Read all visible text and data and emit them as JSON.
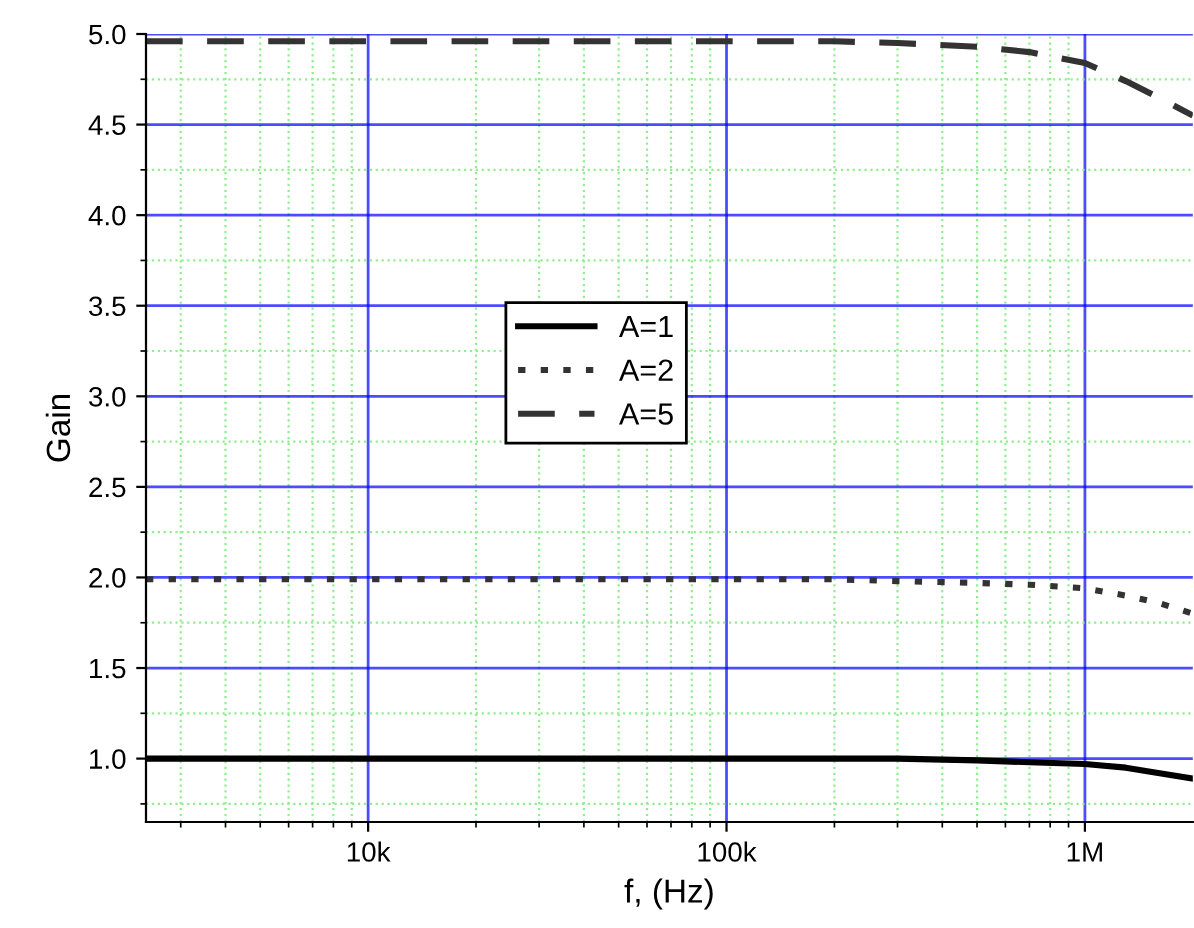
{
  "chart_data": {
    "type": "line",
    "xlabel": "f, (Hz)",
    "ylabel": "Gain",
    "log": "x",
    "xlim": [
      2400,
      2000000
    ],
    "ylim": [
      0.65,
      5.0
    ],
    "xticks": [
      {
        "value": 3000,
        "label": null
      },
      {
        "value": 4000,
        "label": null
      },
      {
        "value": 5000,
        "label": null
      },
      {
        "value": 6000,
        "label": null
      },
      {
        "value": 7000,
        "label": null
      },
      {
        "value": 8000,
        "label": null
      },
      {
        "value": 9000,
        "label": null
      },
      {
        "value": 10000,
        "label": "10k"
      },
      {
        "value": 20000,
        "label": null
      },
      {
        "value": 30000,
        "label": null
      },
      {
        "value": 40000,
        "label": null
      },
      {
        "value": 50000,
        "label": null
      },
      {
        "value": 60000,
        "label": null
      },
      {
        "value": 70000,
        "label": null
      },
      {
        "value": 80000,
        "label": null
      },
      {
        "value": 90000,
        "label": null
      },
      {
        "value": 100000,
        "label": "100k"
      },
      {
        "value": 200000,
        "label": null
      },
      {
        "value": 300000,
        "label": null
      },
      {
        "value": 400000,
        "label": null
      },
      {
        "value": 500000,
        "label": null
      },
      {
        "value": 600000,
        "label": null
      },
      {
        "value": 700000,
        "label": null
      },
      {
        "value": 800000,
        "label": null
      },
      {
        "value": 900000,
        "label": null
      },
      {
        "value": 1000000,
        "label": "1M"
      }
    ],
    "yticks": [
      {
        "value": 0.75,
        "label": null
      },
      {
        "value": 1,
        "label": "1.0"
      },
      {
        "value": 1.25,
        "label": null
      },
      {
        "value": 1.5,
        "label": "1.5"
      },
      {
        "value": 1.75,
        "label": null
      },
      {
        "value": 2,
        "label": "2.0"
      },
      {
        "value": 2.25,
        "label": null
      },
      {
        "value": 2.5,
        "label": "2.5"
      },
      {
        "value": 2.75,
        "label": null
      },
      {
        "value": 3,
        "label": "3.0"
      },
      {
        "value": 3.25,
        "label": null
      },
      {
        "value": 3.5,
        "label": "3.5"
      },
      {
        "value": 3.75,
        "label": null
      },
      {
        "value": 4,
        "label": "4.0"
      },
      {
        "value": 4.25,
        "label": null
      },
      {
        "value": 4.5,
        "label": "4.5"
      },
      {
        "value": 4.75,
        "label": null
      },
      {
        "value": 5,
        "label": "5.0"
      }
    ],
    "x": [
      2400,
      10000,
      100000,
      200000,
      300000,
      500000,
      700000,
      1000000,
      1300000,
      1600000,
      2000000
    ],
    "series": [
      {
        "name": "A=1",
        "color": "#000000",
        "line_style": "solid",
        "values": [
          1.0,
          1.0,
          1.0,
          1.0,
          1.0,
          0.99,
          0.98,
          0.97,
          0.95,
          0.92,
          0.89
        ]
      },
      {
        "name": "A=2",
        "color": "#333333",
        "line_style": "dotted",
        "values": [
          1.99,
          1.99,
          1.99,
          1.99,
          1.98,
          1.97,
          1.96,
          1.94,
          1.9,
          1.86,
          1.8
        ]
      },
      {
        "name": "A=5",
        "color": "#333333",
        "line_style": "dashed",
        "values": [
          4.96,
          4.96,
          4.96,
          4.96,
          4.95,
          4.93,
          4.9,
          4.84,
          4.74,
          4.65,
          4.55
        ]
      }
    ],
    "grid": true,
    "legend": "center",
    "marker": "none"
  }
}
